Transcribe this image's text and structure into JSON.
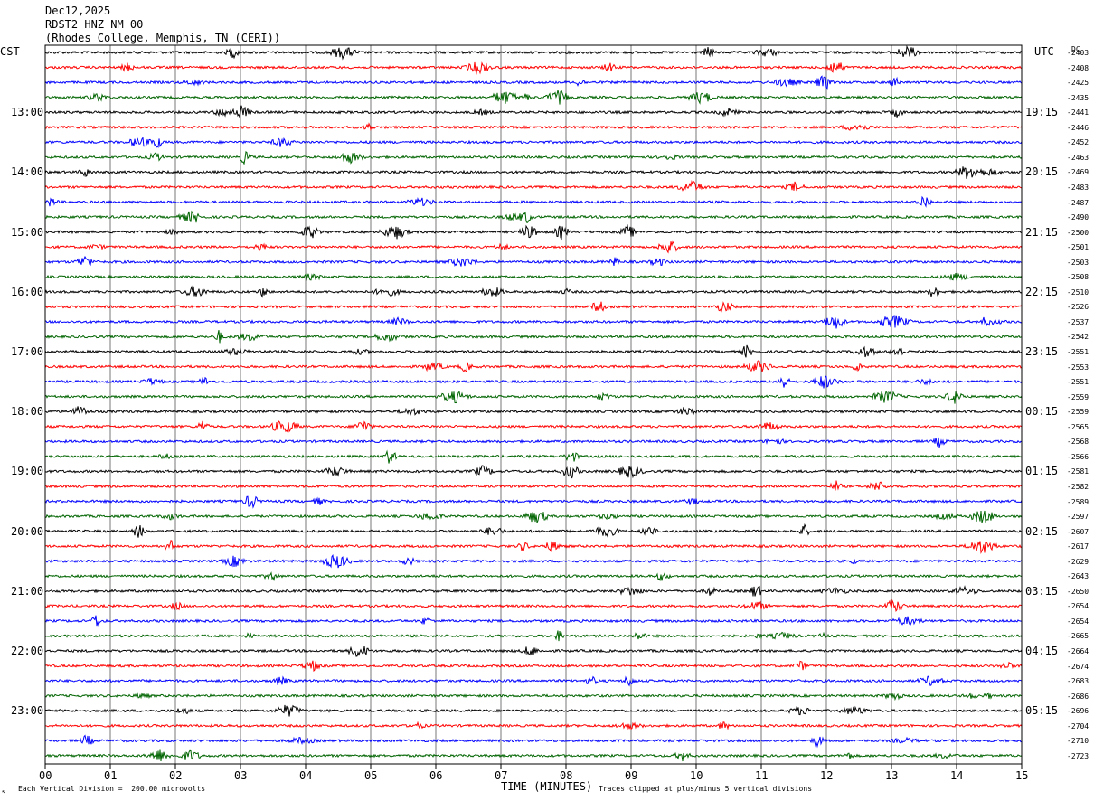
{
  "header": {
    "date": "Dec12,2025",
    "station": "RDST2 HNZ NM 00",
    "location": "(Rhodes College, Memphis, TN (CERI))"
  },
  "left_tz": "CST",
  "right_tz": "UTC",
  "dc_label": "DC",
  "footer": {
    "corner_mark": "↖",
    "scale_note": "Each Vertical Division =  200.00 microvolts",
    "clip_note": "Traces clipped at plus/minus 5 vertical divisions"
  },
  "chart_data": {
    "type": "line",
    "title": "",
    "xlabel": "TIME (MINUTES)",
    "x_ticks": [
      "00",
      "01",
      "02",
      "03",
      "04",
      "05",
      "06",
      "07",
      "08",
      "09",
      "10",
      "11",
      "12",
      "13",
      "14",
      "15"
    ],
    "xlim": [
      0,
      15
    ],
    "grid": true,
    "trace_colors": [
      "#000000",
      "#ff0000",
      "#0000ff",
      "#006400"
    ],
    "traces_per_hour": 4,
    "left_hour_labels": [
      "13:00",
      "14:00",
      "15:00",
      "16:00",
      "17:00",
      "18:00",
      "19:00",
      "20:00",
      "21:00",
      "22:00",
      "23:00"
    ],
    "right_hour_labels": [
      "19:15",
      "20:15",
      "21:15",
      "22:15",
      "23:15",
      "00:15",
      "01:15",
      "02:15",
      "03:15",
      "04:15",
      "05:15"
    ],
    "dc_offsets": [
      "-2403",
      "-2408",
      "-2425",
      "-2435",
      "-2441",
      "-2446",
      "-2452",
      "-2463",
      "-2469",
      "-2483",
      "-2487",
      "-2490",
      "-2500",
      "-2501",
      "-2503",
      "-2508",
      "-2510",
      "-2526",
      "-2537",
      "-2542",
      "-2551",
      "-2553",
      "-2551",
      "-2559",
      "-2559",
      "-2565",
      "-2568",
      "-2566",
      "-2581",
      "-2582",
      "-2589",
      "-2597",
      "-2607",
      "-2617",
      "-2629",
      "-2643",
      "-2650",
      "-2654",
      "-2654",
      "-2665",
      "-2664",
      "-2674",
      "-2683",
      "-2686",
      "-2696",
      "-2704",
      "-2710",
      "-2723"
    ],
    "clip_divisions": 5,
    "division_microvolts": 200.0
  }
}
